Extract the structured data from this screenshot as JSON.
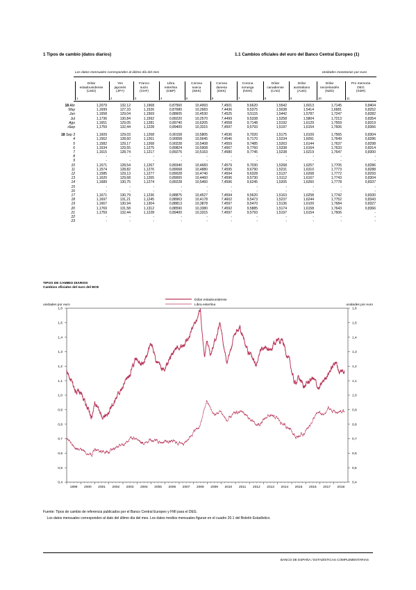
{
  "header": {
    "left_title": "1   Tipos de cambio (datos diarios)",
    "right_title": "1.1   Cambios oficiales del euro del Banco Central Europeo (1)",
    "note_left": "Los datos mensuales corresponden al último día del mes",
    "note_right": "Unidades monetarias por euro"
  },
  "table": {
    "columns": [
      {
        "l1": "Dólar",
        "l2": "estadounidense",
        "l3": "(USD)",
        "num": "1"
      },
      {
        "l1": "Yen",
        "l2": "japonés",
        "l3": "(JPY)",
        "num": "2"
      },
      {
        "l1": "Franco",
        "l2": "suizo",
        "l3": "(CHF)",
        "num": "3"
      },
      {
        "l1": "Libra",
        "l2": "esterlina",
        "l3": "(GBP)",
        "num": "4"
      },
      {
        "l1": "Corona",
        "l2": "sueca",
        "l3": "(SEK)",
        "num": "5"
      },
      {
        "l1": "Corona",
        "l2": "danesa",
        "l3": "(DKK)",
        "num": "6"
      },
      {
        "l1": "Corona",
        "l2": "noruega",
        "l3": "(NOK)",
        "num": "7"
      },
      {
        "l1": "Dólar",
        "l2": "canadiense",
        "l3": "(CAD)",
        "num": "8"
      },
      {
        "l1": "Dólar",
        "l2": "australiano",
        "l3": "(AUD)",
        "num": "9"
      },
      {
        "l1": "Dólar",
        "l2": "neozelandés",
        "l3": "(NZD)",
        "num": "10"
      },
      {
        "l1": "Pro memoria",
        "l2": "DEG",
        "l3": "(XDR)",
        "num": "11"
      }
    ],
    "rows": [
      {
        "year": "18",
        "label": "Abr",
        "mark": "",
        "values": [
          "1,2079",
          "132,12",
          "1,1968",
          "0,87560",
          "10,4993",
          "7,4501",
          "9,6620",
          "1,5542",
          "1,6013",
          "1,7145",
          "0,8404"
        ]
      },
      {
        "year": "",
        "label": "May",
        "mark": "",
        "values": [
          "1,1699",
          "127,33",
          "1,1526",
          "0,87680",
          "10,2683",
          "7,4436",
          "9,5375",
          "1,5038",
          "1,5414",
          "1,6681",
          "0,8252"
        ]
      },
      {
        "year": "",
        "label": "Jun",
        "mark": "",
        "values": [
          "1,1658",
          "129,04",
          "1,1569",
          "0,88605",
          "10,4530",
          "7,4525",
          "9,5115",
          "1,5442",
          "1,5787",
          "1,7247",
          "0,8282"
        ]
      },
      {
        "year": "",
        "label": "Jul",
        "mark": "",
        "values": [
          "1,1736",
          "130,84",
          "1,1592",
          "0,89220",
          "10,2570",
          "7,4499",
          "9,5338",
          "1,5258",
          "1,5804",
          "1,7213",
          "0,8354"
        ]
      },
      {
        "year": "",
        "label": "Ago",
        "mark": "",
        "values": [
          "1,1651",
          "129,05",
          "1,1281",
          "0,89740",
          "10,6205",
          "7,4558",
          "9,7148",
          "1,5192",
          "1,6129",
          "1,7559",
          "0,8319"
        ]
      },
      {
        "year": "",
        "label": "Sep",
        "mark": "A",
        "values": [
          "1,1759",
          "132,44",
          "1,1228",
          "0,89400",
          "10,3315",
          "7,4597",
          "9,5793",
          "1,5197",
          "1,6154",
          "1,7606",
          "0,8366"
        ]
      },
      {
        "gap": true
      },
      {
        "year": "18",
        "label": "Sep  3",
        "mark": "",
        "values": [
          "1,1609",
          "129,03",
          "1,1268",
          "0,90158",
          "10,5805",
          "7,4536",
          "9,7020",
          "1,5175",
          "1,6109",
          "1,7565",
          "0,8304"
        ]
      },
      {
        "year": "",
        "label": "4",
        "mark": "",
        "values": [
          "1,1562",
          "128,60",
          "1,1261",
          "0,90058",
          "10,5645",
          "7,4546",
          "9,7170",
          "1,5234",
          "1,6091",
          "1,7649",
          "0,8286"
        ]
      },
      {
        "year": "",
        "label": "5",
        "mark": "",
        "values": [
          "1,1582",
          "129,17",
          "1,1268",
          "0,90228",
          "10,5408",
          "7,4559",
          "9,7485",
          "1,5263",
          "1,6144",
          "1,7637",
          "0,8298"
        ]
      },
      {
        "year": "",
        "label": "6",
        "mark": "",
        "values": [
          "1,1634",
          "129,55",
          "1,1275",
          "0,89824",
          "10,5908",
          "7,4567",
          "9,7760",
          "1,5338",
          "1,6164",
          "1,7633",
          "0,8314"
        ]
      },
      {
        "year": "",
        "label": "7",
        "mark": "",
        "values": [
          "1,1615",
          "128,74",
          "1,1217",
          "0,89275",
          "10,5163",
          "7,4580",
          "9,7745",
          "1,5238",
          "1,6219",
          "1,7647",
          "0,8300"
        ]
      },
      {
        "year": "",
        "label": "8",
        "mark": "",
        "values": [
          "-",
          "-",
          "-",
          "-",
          "-",
          "-",
          "-",
          "-",
          "-",
          "-",
          "-"
        ]
      },
      {
        "year": "",
        "label": "9",
        "mark": "",
        "values": [
          "-",
          "-",
          "-",
          "-",
          "-",
          "-",
          "-",
          "-",
          "-",
          "-",
          "-"
        ]
      },
      {
        "year": "",
        "label": "10",
        "mark": "",
        "values": [
          "1,1571",
          "128,54",
          "1,1267",
          "0,89340",
          "10,4683",
          "7,4579",
          "9,7030",
          "1,5268",
          "1,6257",
          "1,7705",
          "0,8286"
        ]
      },
      {
        "year": "",
        "label": "11",
        "mark": "",
        "values": [
          "1,1574",
          "128,82",
          "1,1276",
          "0,89068",
          "10,4880",
          "7,4595",
          "9,6790",
          "1,5231",
          "1,6310",
          "1,7773",
          "0,8288"
        ]
      },
      {
        "year": "",
        "label": "12",
        "mark": "",
        "values": [
          "1,1585",
          "129,13",
          "1,1277",
          "0,89028",
          "10,4740",
          "7,4594",
          "9,6328",
          "1,5137",
          "1,6268",
          "1,7772",
          "0,8293"
        ]
      },
      {
        "year": "",
        "label": "13",
        "mark": "",
        "values": [
          "1,1620",
          "129,68",
          "1,1265",
          "0,89000",
          "10,4460",
          "7,4596",
          "9,5730",
          "1,5112",
          "1,6167",
          "1,7743",
          "0,8304"
        ]
      },
      {
        "year": "",
        "label": "14",
        "mark": "",
        "values": [
          "1,1689",
          "130,75",
          "1,1274",
          "0,89228",
          "10,5460",
          "7,4596",
          "9,6245",
          "1,5205",
          "1,6260",
          "1,7778",
          "0,8337"
        ]
      },
      {
        "year": "",
        "label": "15",
        "mark": "",
        "values": [
          "-",
          "-",
          "-",
          "-",
          "-",
          "-",
          "-",
          "-",
          "-",
          "-",
          "-"
        ]
      },
      {
        "year": "",
        "label": "16",
        "mark": "",
        "values": [
          "-",
          "-",
          "-",
          "-",
          "-",
          "-",
          "-",
          "-",
          "-",
          "-",
          "-"
        ]
      },
      {
        "year": "",
        "label": "17",
        "mark": "",
        "values": [
          "1,1671",
          "130,79",
          "1,1236",
          "0,88875",
          "10,4527",
          "7,4594",
          "9,5620",
          "1,5163",
          "1,6258",
          "1,7742",
          "0,8330"
        ]
      },
      {
        "year": "",
        "label": "18",
        "mark": "",
        "values": [
          "1,1697",
          "131,21",
          "1,1245",
          "0,88963",
          "10,4178",
          "7,4602",
          "9,5473",
          "1,5237",
          "1,6244",
          "1,7752",
          "0,8343"
        ]
      },
      {
        "year": "",
        "label": "19",
        "mark": "",
        "values": [
          "1,1667",
          "130,94",
          "1,1304",
          "0,88813",
          "10,3878",
          "7,4597",
          "9,5470",
          "1,5136",
          "1,6109",
          "1,7684",
          "0,8327"
        ]
      },
      {
        "year": "",
        "label": "20",
        "mark": "",
        "values": [
          "1,1769",
          "131,58",
          "1,1312",
          "0,88590",
          "10,3380",
          "7,4592",
          "9,5885",
          "1,5174",
          "1,6158",
          "1,7643",
          "0,8366"
        ]
      },
      {
        "year": "",
        "label": "21",
        "mark": "",
        "values": [
          "1,1759",
          "132,44",
          "1,1228",
          "0,89400",
          "10,3315",
          "7,4597",
          "9,5793",
          "1,5197",
          "1,6154",
          "1,7606",
          "-"
        ]
      },
      {
        "year": "",
        "label": "22",
        "mark": "",
        "values": [
          "-",
          "-",
          "-",
          "-",
          "-",
          "-",
          "-",
          "-",
          "-",
          "-",
          "-"
        ]
      },
      {
        "year": "",
        "label": "23",
        "mark": "",
        "values": [
          "-",
          "-",
          "-",
          "-",
          "-",
          "-",
          "-",
          "-",
          "-",
          "-",
          "-"
        ]
      }
    ]
  },
  "chart": {
    "title_l1": "TIPOS DE CAMBIO DIARIOS",
    "title_l2": "Cambios oficiales del euro del BCE",
    "unit_left": "unidades por euro",
    "unit_right": "unidades por euro",
    "line_color": "#b8375a"
  },
  "chart_data": {
    "type": "line",
    "x": [
      1999,
      2000,
      2001,
      2002,
      2003,
      2004,
      2005,
      2006,
      2007,
      2008,
      2009,
      2010,
      2011,
      2012,
      2013,
      2014,
      2015,
      2016,
      2017,
      2018
    ],
    "xlabels": [
      "1999",
      "2000",
      "2001",
      "2002",
      "2003",
      "2004",
      "2005",
      "2006",
      "2007",
      "2008",
      "2009",
      "2010",
      "2011",
      "2012",
      "2013",
      "2014",
      "2015",
      "2016",
      "2017",
      "2018"
    ],
    "yticks": [
      "0,4",
      "0,5",
      "0,6",
      "0,7",
      "0,8",
      "0,9",
      "1,0",
      "1,1",
      "1,2",
      "1,3",
      "1,4",
      "1,5",
      "1,6"
    ],
    "ylim": [
      0.4,
      1.6
    ],
    "grid": false,
    "legend_position": "top-center",
    "series": [
      {
        "name": "Dólar estadounidense",
        "points": [
          [
            1999.0,
            1.17
          ],
          [
            1999.5,
            1.05
          ],
          [
            2000.0,
            1.01
          ],
          [
            2000.4,
            0.93
          ],
          [
            2000.8,
            0.85
          ],
          [
            2001.0,
            0.94
          ],
          [
            2001.5,
            0.85
          ],
          [
            2002.0,
            0.88
          ],
          [
            2002.5,
            0.99
          ],
          [
            2003.0,
            1.05
          ],
          [
            2003.5,
            1.15
          ],
          [
            2004.0,
            1.26
          ],
          [
            2004.5,
            1.22
          ],
          [
            2004.95,
            1.36
          ],
          [
            2005.5,
            1.21
          ],
          [
            2005.9,
            1.17
          ],
          [
            2006.5,
            1.28
          ],
          [
            2006.95,
            1.32
          ],
          [
            2007.5,
            1.37
          ],
          [
            2007.95,
            1.47
          ],
          [
            2008.5,
            1.58
          ],
          [
            2008.8,
            1.27
          ],
          [
            2009.0,
            1.39
          ],
          [
            2009.2,
            1.28
          ],
          [
            2009.9,
            1.5
          ],
          [
            2010.4,
            1.2
          ],
          [
            2010.9,
            1.4
          ],
          [
            2011.3,
            1.48
          ],
          [
            2011.95,
            1.29
          ],
          [
            2012.5,
            1.21
          ],
          [
            2012.9,
            1.32
          ],
          [
            2013.5,
            1.31
          ],
          [
            2013.95,
            1.38
          ],
          [
            2014.3,
            1.39
          ],
          [
            2014.9,
            1.21
          ],
          [
            2015.2,
            1.08
          ],
          [
            2015.5,
            1.12
          ],
          [
            2015.9,
            1.06
          ],
          [
            2016.5,
            1.12
          ],
          [
            2016.95,
            1.04
          ],
          [
            2017.5,
            1.14
          ],
          [
            2017.95,
            1.2
          ],
          [
            2018.1,
            1.24
          ],
          [
            2018.4,
            1.16
          ],
          [
            2018.75,
            1.17
          ]
        ]
      },
      {
        "name": "Libra esterlina",
        "points": [
          [
            1999.0,
            0.71
          ],
          [
            1999.5,
            0.65
          ],
          [
            2000.0,
            0.62
          ],
          [
            2000.5,
            0.6
          ],
          [
            2000.8,
            0.58
          ],
          [
            2001.0,
            0.63
          ],
          [
            2001.5,
            0.61
          ],
          [
            2002.0,
            0.61
          ],
          [
            2002.5,
            0.64
          ],
          [
            2003.0,
            0.66
          ],
          [
            2003.5,
            0.7
          ],
          [
            2004.0,
            0.7
          ],
          [
            2004.5,
            0.67
          ],
          [
            2005.0,
            0.7
          ],
          [
            2005.5,
            0.68
          ],
          [
            2006.0,
            0.68
          ],
          [
            2006.5,
            0.68
          ],
          [
            2007.0,
            0.67
          ],
          [
            2007.5,
            0.68
          ],
          [
            2007.95,
            0.74
          ],
          [
            2008.5,
            0.79
          ],
          [
            2008.95,
            0.96
          ],
          [
            2009.5,
            0.86
          ],
          [
            2009.95,
            0.89
          ],
          [
            2010.4,
            0.82
          ],
          [
            2010.9,
            0.87
          ],
          [
            2011.5,
            0.89
          ],
          [
            2011.95,
            0.84
          ],
          [
            2012.5,
            0.79
          ],
          [
            2012.9,
            0.81
          ],
          [
            2013.3,
            0.86
          ],
          [
            2013.95,
            0.84
          ],
          [
            2014.5,
            0.79
          ],
          [
            2014.95,
            0.77
          ],
          [
            2015.3,
            0.71
          ],
          [
            2015.6,
            0.72
          ],
          [
            2015.95,
            0.74
          ],
          [
            2016.5,
            0.83
          ],
          [
            2016.9,
            0.88
          ],
          [
            2017.3,
            0.86
          ],
          [
            2017.6,
            0.91
          ],
          [
            2017.95,
            0.89
          ],
          [
            2018.3,
            0.88
          ],
          [
            2018.75,
            0.89
          ]
        ]
      }
    ]
  },
  "footer": {
    "line1": "Fuente:  Tipos de cambio de referencia publicados por el Banco Central Europeo y FMI para el DEG.",
    "line2": "    Los datos mensuales corresponden al dato del último día del mes. Los datos medios mensuales figuran en el cuadro 20.1 del Boletín Estadístico.",
    "brand": "BANCO DE ESPAÑA / ESTADÍSTICAS COMPLEMENTARIAS"
  }
}
